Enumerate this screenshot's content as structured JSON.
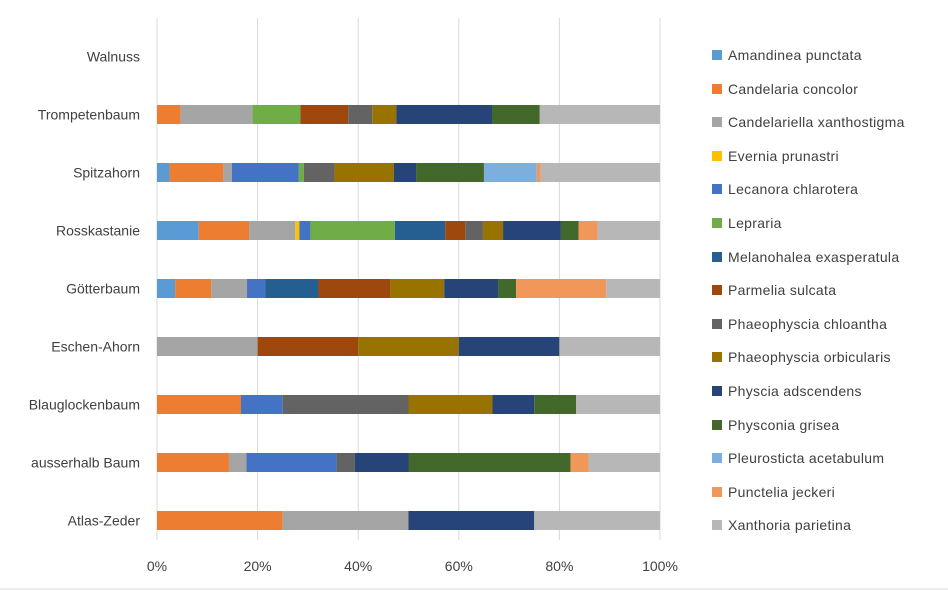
{
  "chart_data": {
    "type": "bar",
    "orientation": "horizontal",
    "stacked": "percent",
    "categories": [
      "Walnuss",
      "Trompetenbaum",
      "Spitzahorn",
      "Rosskastanie",
      "Götterbaum",
      "Eschen-Ahorn",
      "Blauglockenbaum",
      "ausserhalb Baum",
      "Atlas-Zeder"
    ],
    "xticks": [
      "0%",
      "20%",
      "40%",
      "60%",
      "80%",
      "100%"
    ],
    "xlim": [
      0,
      100
    ],
    "grid": true,
    "legend_position": "right",
    "series": [
      {
        "name": "Amandinea punctata",
        "color": "#5b9bd5",
        "values": [
          0,
          0,
          2.5,
          8.3,
          3.6,
          0,
          0,
          0,
          0
        ]
      },
      {
        "name": "Candelaria concolor",
        "color": "#ed7d31",
        "values": [
          0,
          4.7,
          10.7,
          10,
          7.2,
          0,
          16.7,
          14.3,
          25
        ]
      },
      {
        "name": "Candelariella xanthostigma",
        "color": "#a5a5a5",
        "values": [
          0,
          14.3,
          1.7,
          9.2,
          7.1,
          20,
          0,
          3.5,
          25
        ]
      },
      {
        "name": "Evernia prunastri",
        "color": "#ffc000",
        "values": [
          0,
          0,
          0,
          0.8,
          0,
          0,
          0,
          0,
          0
        ]
      },
      {
        "name": "Lecanora chlarotera",
        "color": "#4472c4",
        "values": [
          0,
          0,
          13.3,
          2.2,
          3.6,
          0,
          8.3,
          17.9,
          0
        ]
      },
      {
        "name": "Lepraria",
        "color": "#70ad47",
        "values": [
          0,
          9.5,
          1,
          16.8,
          0,
          0,
          0,
          0,
          0
        ]
      },
      {
        "name": "Melanohalea exasperatula",
        "color": "#255e91",
        "values": [
          0,
          0,
          0,
          10,
          10.6,
          0,
          0,
          0,
          0
        ]
      },
      {
        "name": "Parmelia sulcata",
        "color": "#9e480e",
        "values": [
          0,
          9.5,
          0,
          4,
          14.3,
          20,
          0,
          0,
          0
        ]
      },
      {
        "name": "Phaeophyscia chloantha",
        "color": "#636363",
        "values": [
          0,
          4.8,
          6.1,
          3.5,
          0,
          0,
          25,
          3.6,
          0
        ]
      },
      {
        "name": "Phaeophyscia orbicularis",
        "color": "#997300",
        "values": [
          0,
          4.8,
          11.8,
          4,
          10.7,
          20,
          16.7,
          0,
          0
        ]
      },
      {
        "name": "Physcia adscendens",
        "color": "#264478",
        "values": [
          0,
          19,
          4.4,
          11.5,
          10.7,
          20,
          8.3,
          10.7,
          25
        ]
      },
      {
        "name": "Physconia grisea",
        "color": "#43682b",
        "values": [
          0,
          9.5,
          13.5,
          3.5,
          3.6,
          0,
          8.3,
          32.2,
          0
        ]
      },
      {
        "name": "Pleurosticta acetabulum",
        "color": "#7cafdd",
        "values": [
          0,
          0,
          10.5,
          0,
          0,
          0,
          0,
          0,
          0
        ]
      },
      {
        "name": "Punctelia jeckeri",
        "color": "#f1975a",
        "values": [
          0,
          0,
          0.8,
          3.8,
          17.9,
          0,
          0,
          3.6,
          0
        ]
      },
      {
        "name": "Xanthoria parietina",
        "color": "#b7b7b7",
        "values": [
          0,
          23.9,
          23.7,
          12.4,
          10.7,
          20,
          16.7,
          14.2,
          25
        ]
      }
    ]
  }
}
